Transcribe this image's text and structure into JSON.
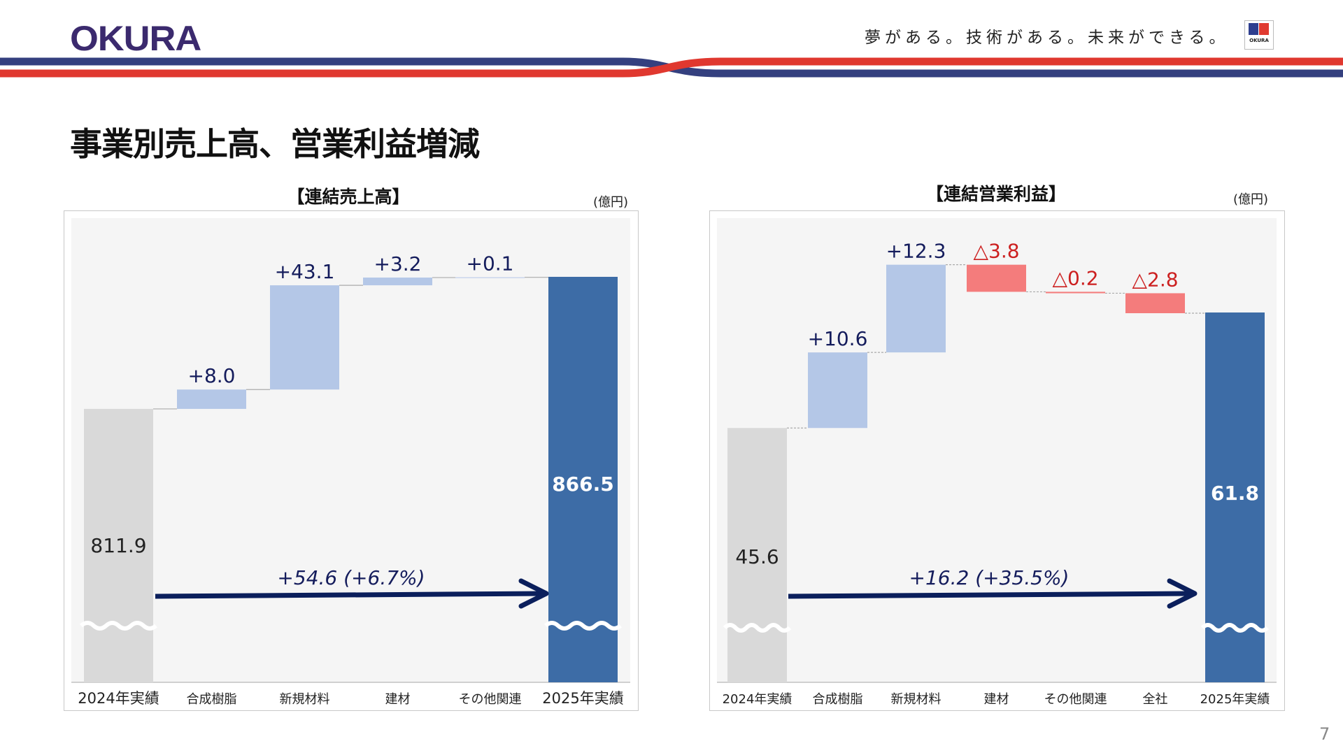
{
  "header": {
    "logo_text": "OKURA",
    "tagline": "夢がある。技術がある。未来ができる。",
    "mini_logo_text": "OKURA"
  },
  "page_title": "事業別売上高、営業利益増減",
  "page_number": "7",
  "colors": {
    "brand_navy": "#3b2a6e",
    "stripe_blue": "#34407f",
    "stripe_red": "#e0382f",
    "start_bar": "#d9d9d9",
    "increase_bar": "#b4c7e7",
    "decrease_bar": "#f47c7c",
    "end_bar": "#3d6ca6",
    "label_navy": "#141c5c",
    "label_red": "#cc2020"
  },
  "chart_data": [
    {
      "type": "waterfall",
      "title": "【連結売上高】",
      "unit": "(億円)",
      "categories": [
        "2024年実績",
        "合成樹脂",
        "新規材料",
        "建材",
        "その他関連",
        "2025年実績"
      ],
      "values": [
        811.9,
        8.0,
        43.1,
        3.2,
        0.1,
        866.5
      ],
      "kinds": [
        "total",
        "delta",
        "delta",
        "delta",
        "delta",
        "total"
      ],
      "labels": [
        "811.9",
        "+8.0",
        "+43.1",
        "+3.2",
        "+0.1",
        "866.5"
      ],
      "change_label": "+54.6 (+6.7%)",
      "axis_break": true
    },
    {
      "type": "waterfall",
      "title": "【連結営業利益】",
      "unit": "(億円)",
      "categories": [
        "2024年実績",
        "合成樹脂",
        "新規材料",
        "建材",
        "その他関連",
        "全社",
        "2025年実績"
      ],
      "values": [
        45.6,
        10.6,
        12.3,
        -3.8,
        -0.2,
        -2.8,
        61.8
      ],
      "kinds": [
        "total",
        "delta",
        "delta",
        "delta",
        "delta",
        "delta",
        "total"
      ],
      "labels": [
        "45.6",
        "+10.6",
        "+12.3",
        "△3.8",
        "△0.2",
        "△2.8",
        "61.8"
      ],
      "change_label": "+16.2 (+35.5%)",
      "axis_break": true
    }
  ]
}
